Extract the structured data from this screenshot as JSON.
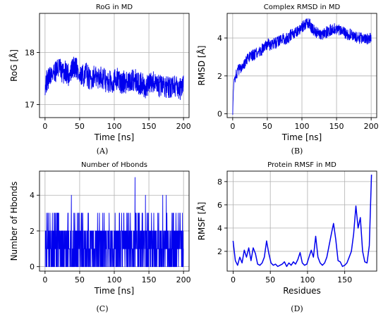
{
  "panel_labels": [
    "(A)",
    "(B)",
    "(C)",
    "(D)"
  ],
  "series_color": "#0000ee",
  "chart_data": [
    {
      "type": "line",
      "title": "RoG in MD",
      "xlabel": "Time [ns]",
      "ylabel": "RoG [Å]",
      "xlim": [
        -8,
        208
      ],
      "ylim": [
        16.75,
        18.75
      ],
      "xticks": [
        0,
        50,
        100,
        150,
        200
      ],
      "yticks": [
        17,
        18
      ],
      "grid": true,
      "x": [
        0,
        5,
        10,
        15,
        20,
        25,
        30,
        35,
        40,
        45,
        50,
        55,
        60,
        65,
        70,
        75,
        80,
        85,
        90,
        95,
        100,
        105,
        110,
        115,
        120,
        125,
        130,
        135,
        140,
        145,
        150,
        155,
        160,
        165,
        170,
        175,
        180,
        185,
        190,
        195,
        200
      ],
      "y": [
        17.4,
        17.5,
        17.6,
        17.65,
        17.7,
        17.6,
        17.65,
        17.55,
        17.7,
        17.75,
        17.5,
        17.55,
        17.6,
        17.45,
        17.55,
        17.5,
        17.55,
        17.5,
        17.4,
        17.45,
        17.45,
        17.5,
        17.4,
        17.45,
        17.4,
        17.45,
        17.5,
        17.4,
        17.4,
        17.3,
        17.4,
        17.45,
        17.35,
        17.35,
        17.4,
        17.35,
        17.3,
        17.4,
        17.35,
        17.3,
        17.35
      ],
      "noise": 0.22,
      "point_count": 800
    },
    {
      "type": "line",
      "title": "Complex RMSD in MD",
      "xlabel": "Time [ns]",
      "ylabel": "RMSD [Å]",
      "xlim": [
        -8,
        208
      ],
      "ylim": [
        -0.2,
        5.3
      ],
      "xticks": [
        0,
        50,
        100,
        150,
        200
      ],
      "yticks": [
        0,
        2,
        4
      ],
      "grid": true,
      "x": [
        0,
        1,
        2,
        5,
        10,
        15,
        20,
        25,
        30,
        35,
        40,
        45,
        50,
        55,
        60,
        65,
        70,
        75,
        80,
        85,
        90,
        95,
        100,
        105,
        110,
        115,
        120,
        125,
        130,
        135,
        140,
        145,
        150,
        155,
        160,
        165,
        170,
        175,
        180,
        185,
        190,
        195,
        200
      ],
      "y": [
        0,
        1.2,
        1.8,
        2.1,
        2.4,
        2.6,
        2.8,
        3.0,
        3.1,
        3.2,
        3.3,
        3.5,
        3.7,
        3.6,
        3.7,
        3.8,
        4.0,
        3.9,
        4.0,
        4.2,
        4.3,
        4.4,
        4.6,
        4.7,
        4.8,
        4.5,
        4.3,
        4.2,
        4.2,
        4.3,
        4.4,
        4.5,
        4.5,
        4.4,
        4.3,
        4.2,
        4.2,
        4.1,
        4.0,
        4.0,
        4.0,
        3.95,
        4.0
      ],
      "noise": 0.3,
      "point_count": 800
    },
    {
      "type": "line",
      "title": "Number of Hbonds",
      "xlabel": "Time [ns]",
      "ylabel": "Number of Hbonds",
      "xlim": [
        -8,
        208
      ],
      "ylim": [
        -0.25,
        5.35
      ],
      "xticks": [
        0,
        50,
        100,
        150,
        200
      ],
      "yticks": [
        0,
        2,
        4
      ],
      "grid": true,
      "discrete": true,
      "levels": [
        0,
        1,
        2,
        3,
        4,
        5
      ],
      "spikes": [
        {
          "x": 38,
          "y": 4
        },
        {
          "x": 130,
          "y": 5
        },
        {
          "x": 145,
          "y": 4
        },
        {
          "x": 170,
          "y": 4
        },
        {
          "x": 175,
          "y": 4
        }
      ],
      "point_count": 900
    },
    {
      "type": "line",
      "title": "Protein RMSF in MD",
      "xlabel": "Residues",
      "ylabel": "RMSF [Å]",
      "xlim": [
        -8,
        193
      ],
      "ylim": [
        0.3,
        8.9
      ],
      "xticks": [
        0,
        50,
        100,
        150
      ],
      "yticks": [
        2,
        4,
        6,
        8
      ],
      "grid": true,
      "x": [
        0,
        3,
        6,
        9,
        12,
        15,
        18,
        21,
        24,
        27,
        30,
        33,
        36,
        39,
        42,
        45,
        48,
        51,
        54,
        57,
        60,
        63,
        66,
        69,
        72,
        75,
        78,
        81,
        84,
        87,
        90,
        93,
        96,
        99,
        102,
        105,
        108,
        111,
        114,
        117,
        120,
        123,
        126,
        129,
        132,
        135,
        138,
        141,
        144,
        147,
        150,
        153,
        156,
        159,
        162,
        165,
        168,
        171,
        174,
        177,
        180,
        183,
        186
      ],
      "y": [
        2.9,
        1.2,
        0.8,
        1.5,
        1.0,
        2.1,
        1.5,
        2.3,
        1.2,
        2.3,
        1.8,
        0.9,
        0.8,
        1.0,
        1.5,
        2.9,
        1.8,
        1.0,
        0.8,
        0.9,
        0.7,
        0.8,
        0.9,
        1.1,
        0.7,
        1.0,
        0.8,
        1.1,
        0.9,
        1.3,
        1.9,
        1.0,
        0.8,
        0.9,
        1.5,
        2.1,
        1.5,
        3.3,
        1.5,
        1.0,
        0.8,
        1.0,
        1.5,
        2.5,
        3.5,
        4.4,
        3.0,
        1.2,
        1.1,
        0.7,
        0.8,
        1.0,
        1.5,
        2.0,
        3.5,
        5.9,
        4.0,
        4.9,
        2.0,
        1.1,
        1.0,
        2.5,
        8.6
      ],
      "point_count": 187
    }
  ]
}
